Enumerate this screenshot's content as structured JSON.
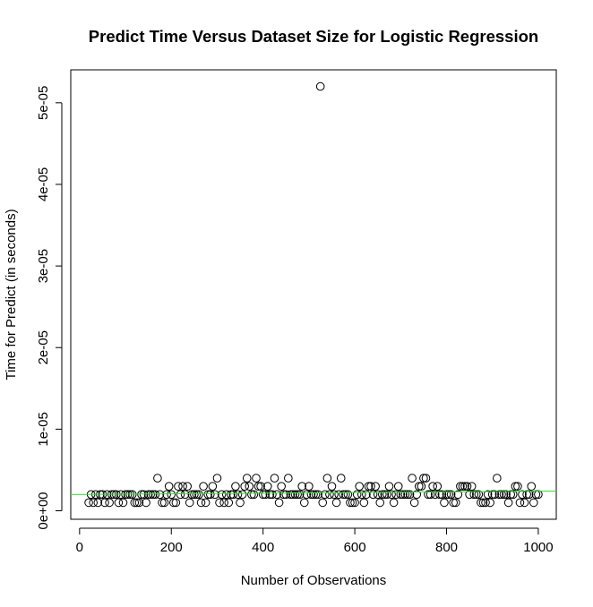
{
  "chart_data": {
    "type": "scatter",
    "title": "Predict Time Versus Dataset Size for Logistic Regression",
    "x_label": "Number of Observations",
    "y_label": "Time for Predict (in seconds)",
    "xlim": [
      -19.2,
      1039.2
    ],
    "ylim": [
      -1.04e-06,
      5.404e-05
    ],
    "xticks": [
      0,
      200,
      400,
      600,
      800,
      1000
    ],
    "yticks": [
      {
        "value": 0,
        "label": "0e+00"
      },
      {
        "value": 1e-05,
        "label": "1e-05"
      },
      {
        "value": 2e-05,
        "label": "2e-05"
      },
      {
        "value": 3e-05,
        "label": "3e-05"
      },
      {
        "value": 4e-05,
        "label": "4e-05"
      },
      {
        "value": 5e-05,
        "label": "5e-05"
      }
    ],
    "point_color": "#000000",
    "fit_line": {
      "color": "#33dd33",
      "intercept": 2e-06,
      "slope": 4e-10
    },
    "series": [
      {
        "name": "observations",
        "color": "#000000",
        "x": [
          20,
          25,
          30,
          35,
          40,
          45,
          50,
          55,
          60,
          65,
          70,
          75,
          80,
          85,
          90,
          95,
          100,
          105,
          110,
          115,
          120,
          125,
          130,
          135,
          140,
          145,
          150,
          155,
          160,
          165,
          170,
          175,
          180,
          185,
          190,
          195,
          200,
          205,
          210,
          215,
          220,
          225,
          230,
          235,
          240,
          245,
          250,
          255,
          260,
          265,
          270,
          275,
          280,
          285,
          290,
          295,
          300,
          305,
          310,
          315,
          320,
          325,
          330,
          335,
          340,
          345,
          350,
          355,
          360,
          365,
          370,
          375,
          380,
          385,
          390,
          395,
          400,
          405,
          410,
          415,
          420,
          425,
          430,
          435,
          440,
          445,
          450,
          455,
          460,
          465,
          470,
          475,
          480,
          485,
          490,
          495,
          500,
          505,
          510,
          515,
          520,
          525,
          530,
          535,
          540,
          545,
          550,
          555,
          560,
          565,
          570,
          575,
          580,
          585,
          590,
          595,
          600,
          605,
          610,
          615,
          620,
          625,
          630,
          635,
          640,
          645,
          650,
          655,
          660,
          665,
          670,
          675,
          680,
          685,
          690,
          695,
          700,
          705,
          710,
          715,
          720,
          725,
          730,
          735,
          740,
          745,
          750,
          755,
          760,
          765,
          770,
          775,
          780,
          785,
          790,
          795,
          800,
          805,
          810,
          815,
          820,
          825,
          830,
          835,
          840,
          845,
          850,
          855,
          860,
          865,
          870,
          875,
          880,
          885,
          890,
          895,
          900,
          905,
          910,
          915,
          920,
          925,
          930,
          935,
          940,
          945,
          950,
          955,
          960,
          965,
          970,
          975,
          980,
          985,
          990,
          995,
          1000
        ],
        "values": [
          1e-06,
          2e-06,
          1e-06,
          2e-06,
          1e-06,
          2e-06,
          2e-06,
          1e-06,
          2e-06,
          1e-06,
          2e-06,
          2e-06,
          2e-06,
          1e-06,
          2e-06,
          1e-06,
          2e-06,
          2e-06,
          2e-06,
          2e-06,
          1e-06,
          1e-06,
          1e-06,
          2e-06,
          2e-06,
          1e-06,
          2e-06,
          2e-06,
          2e-06,
          2e-06,
          4e-06,
          2e-06,
          1e-06,
          1e-06,
          2e-06,
          3e-06,
          2e-06,
          1e-06,
          1e-06,
          3e-06,
          2e-06,
          3e-06,
          2e-06,
          3e-06,
          1e-06,
          2e-06,
          2e-06,
          2e-06,
          2e-06,
          1e-06,
          3e-06,
          1e-06,
          2e-06,
          2e-06,
          3e-06,
          2e-06,
          4e-06,
          1e-06,
          2e-06,
          1e-06,
          2e-06,
          1e-06,
          2e-06,
          2e-06,
          3e-06,
          2e-06,
          1e-06,
          2e-06,
          3e-06,
          4e-06,
          3e-06,
          2e-06,
          2e-06,
          4e-06,
          3e-06,
          3e-06,
          2e-06,
          2e-06,
          3e-06,
          2e-06,
          2e-06,
          4e-06,
          2e-06,
          1e-06,
          3e-06,
          2e-06,
          2e-06,
          4e-06,
          2e-06,
          2e-06,
          2e-06,
          2e-06,
          2e-06,
          3e-06,
          1e-06,
          2e-06,
          3e-06,
          2e-06,
          2e-06,
          2e-06,
          2e-06,
          5.2e-05,
          1e-06,
          2e-06,
          4e-06,
          2e-06,
          3e-06,
          2e-06,
          1e-06,
          2e-06,
          4e-06,
          2e-06,
          2e-06,
          2e-06,
          1e-06,
          1e-06,
          1e-06,
          2e-06,
          3e-06,
          2e-06,
          1e-06,
          2e-06,
          3e-06,
          3e-06,
          2e-06,
          3e-06,
          2e-06,
          1e-06,
          2e-06,
          2e-06,
          2e-06,
          3e-06,
          2e-06,
          1e-06,
          2e-06,
          3e-06,
          2e-06,
          2e-06,
          2e-06,
          2e-06,
          2e-06,
          4e-06,
          1e-06,
          2e-06,
          3e-06,
          3e-06,
          4e-06,
          4e-06,
          2e-06,
          2e-06,
          3e-06,
          2e-06,
          3e-06,
          2e-06,
          2e-06,
          1e-06,
          2e-06,
          2e-06,
          2e-06,
          1e-06,
          1e-06,
          2e-06,
          3e-06,
          3e-06,
          3e-06,
          3e-06,
          2e-06,
          3e-06,
          2e-06,
          2e-06,
          2e-06,
          1e-06,
          1e-06,
          1e-06,
          2e-06,
          1e-06,
          2e-06,
          2e-06,
          4e-06,
          2e-06,
          2e-06,
          2e-06,
          2e-06,
          1e-06,
          2e-06,
          2e-06,
          3e-06,
          3e-06,
          1e-06,
          2e-06,
          1e-06,
          2e-06,
          2e-06,
          3e-06,
          1e-06,
          2e-06,
          2e-06
        ]
      }
    ]
  }
}
